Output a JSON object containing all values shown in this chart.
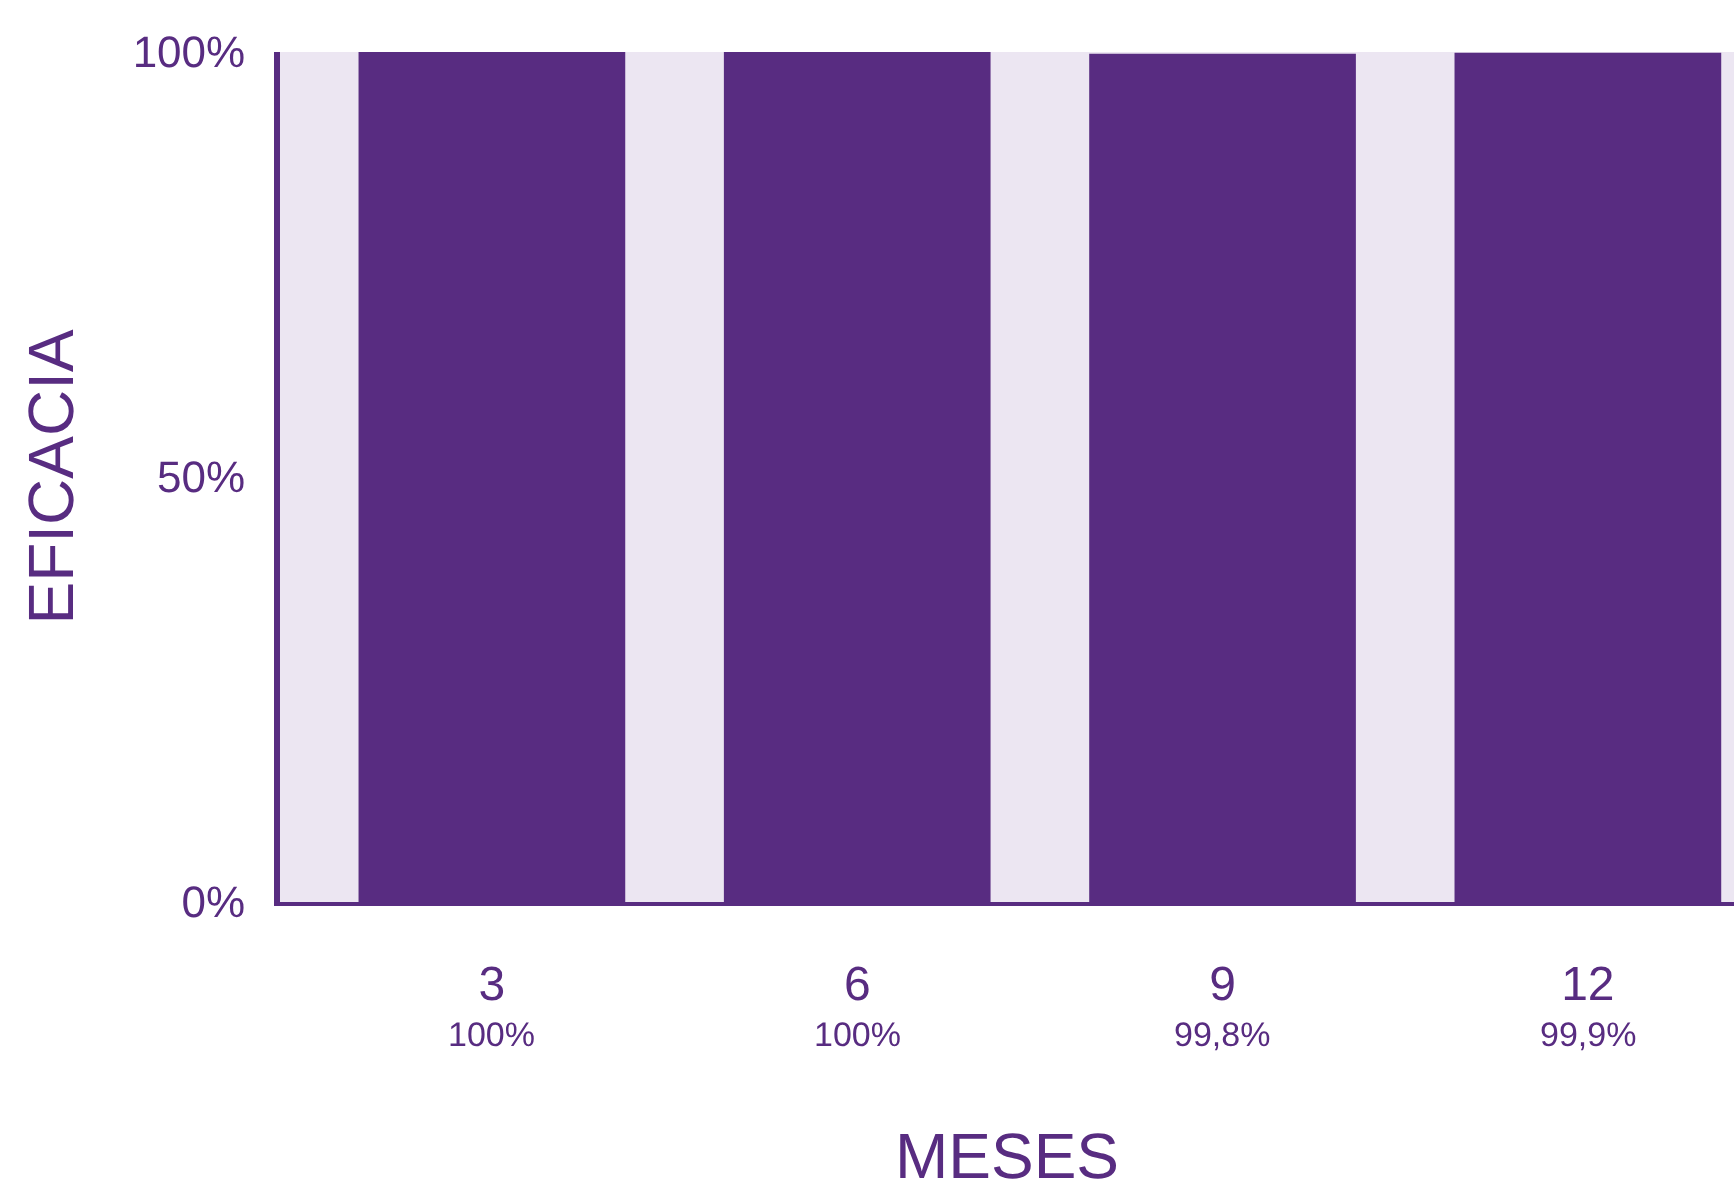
{
  "chart_data": {
    "type": "bar",
    "xlabel": "MESES",
    "ylabel": "EFICACIA",
    "categories": [
      "3",
      "6",
      "9",
      "12"
    ],
    "values": [
      100,
      100,
      99.8,
      99.9
    ],
    "value_labels": [
      "100%",
      "100%",
      "99,8%",
      "99,9%"
    ],
    "color": "#582c81",
    "ylim": [
      0,
      100
    ],
    "yticks": [
      {
        "value": 0,
        "label": "0%"
      },
      {
        "value": 50,
        "label": "50%"
      },
      {
        "value": 100,
        "label": "100%"
      }
    ],
    "grid": false,
    "legend": false
  }
}
